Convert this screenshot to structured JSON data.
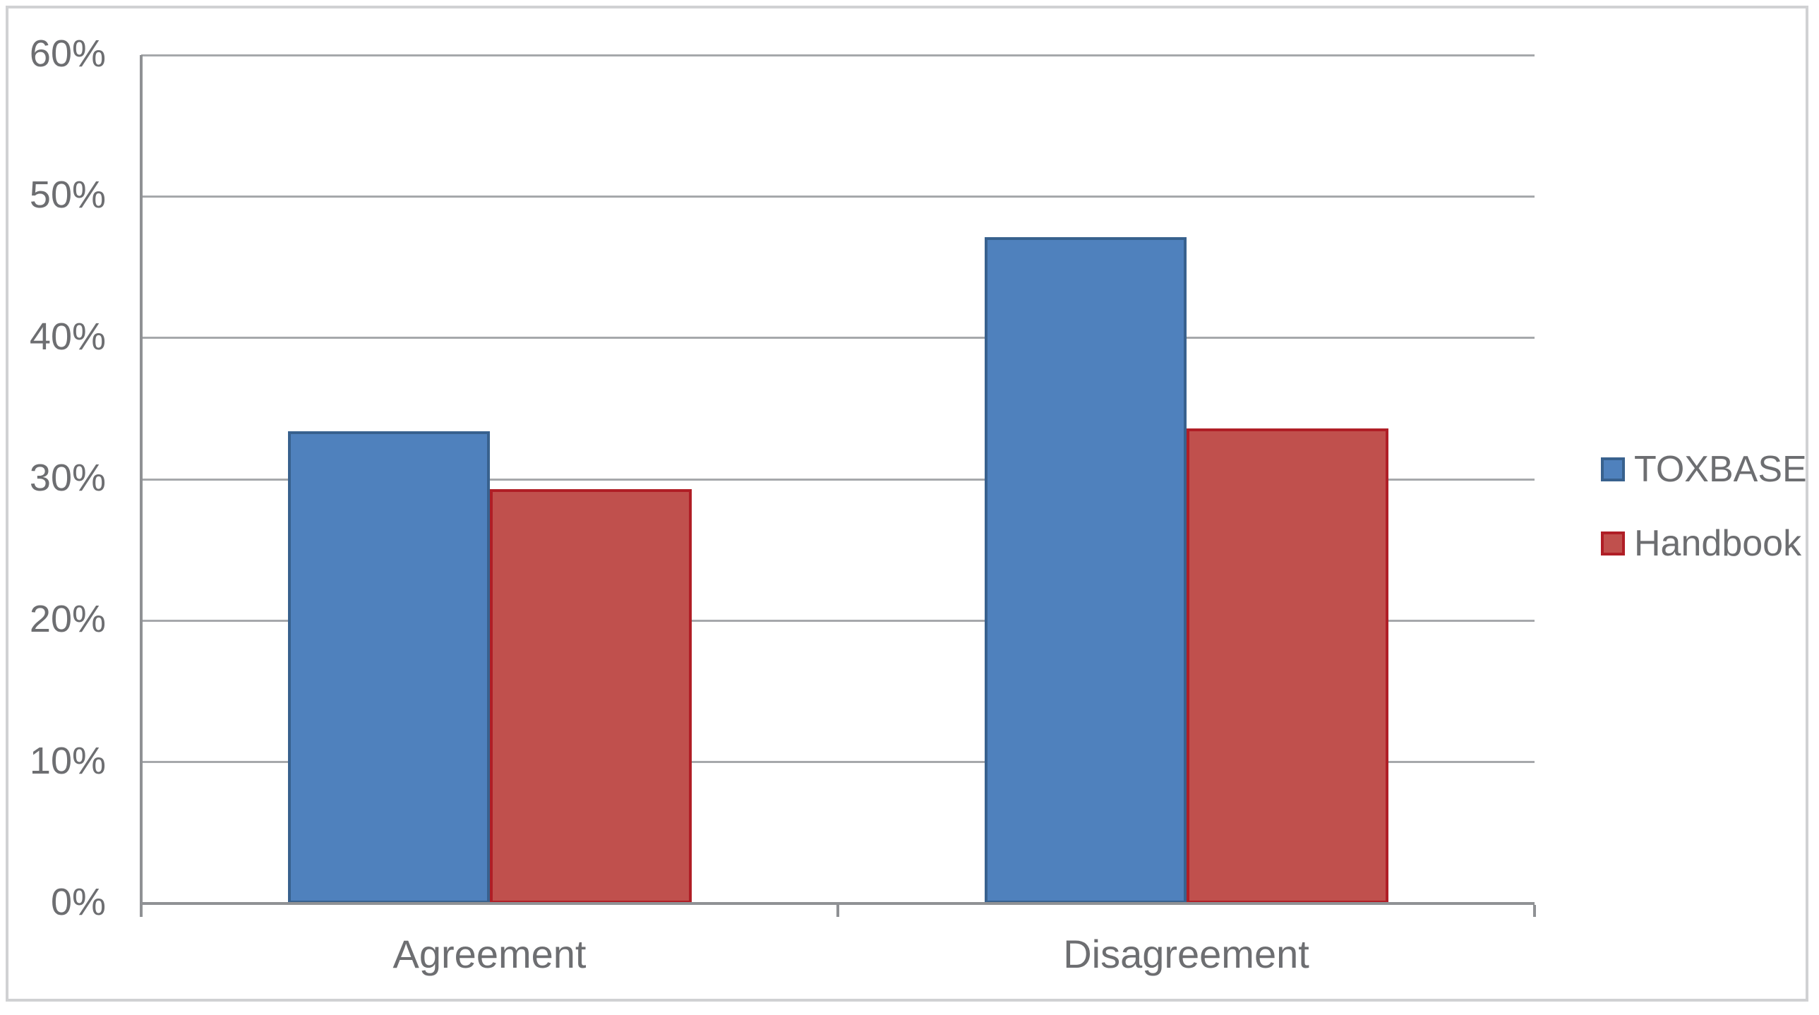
{
  "chart_data": {
    "type": "bar",
    "title": "",
    "xlabel": "",
    "ylabel": "",
    "categories": [
      "Agreement",
      "Disagreement"
    ],
    "series": [
      {
        "name": "TOXBASE",
        "values": [
          33.4,
          47.1
        ],
        "fill": "#4F81BD",
        "border": "#38618E"
      },
      {
        "name": "Handbook",
        "values": [
          29.3,
          33.6
        ],
        "fill": "#C0504D",
        "border": "#B01E26"
      }
    ],
    "ylim": [
      0,
      60
    ],
    "ytick_step": 10,
    "yticks": [
      "0%",
      "10%",
      "20%",
      "30%",
      "40%",
      "50%",
      "60%"
    ],
    "grid": true,
    "legend_position": "right"
  },
  "colors": {
    "gridline": "#A6A8AB",
    "axis": "#8F9194",
    "text": "#6D6E71",
    "figure_border": "#D0D1D3",
    "background": "#FFFFFF"
  }
}
